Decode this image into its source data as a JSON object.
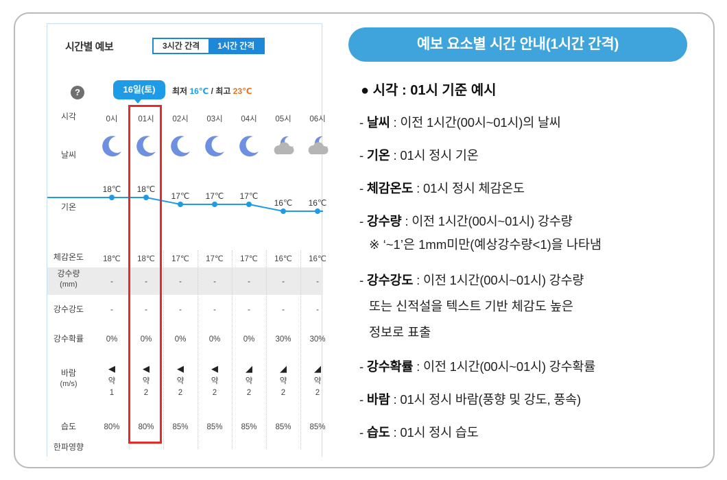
{
  "widget": {
    "title": "시간별 예보",
    "tabs": [
      "3시간 간격",
      "1시간 간격"
    ],
    "help": "?",
    "date_badge": "16일(토)",
    "min_label": "최저",
    "min_value": "16℃",
    "separator": "/",
    "max_label": "최고",
    "max_value": "23℃",
    "rows": {
      "time": "시각",
      "weather": "날씨",
      "temp": "기온",
      "feels": "체감온도",
      "rain_amount": "강수량",
      "rain_amount_unit": "(mm)",
      "rain_intensity": "강수강도",
      "rain_prob": "강수확률",
      "wind": "바람",
      "wind_unit": "(m/s)",
      "humidity": "습도",
      "cold": "한파영향"
    },
    "columns": [
      {
        "time": "0시",
        "weather": "moon-icon",
        "temp": "18℃",
        "temp_val": 18,
        "feels": "18℃",
        "rain_amount": "-",
        "rain_intensity": "-",
        "rain_prob": "0%",
        "wind_dir": "◀",
        "wind_level": "약",
        "wind_speed": "1",
        "humidity": "80%"
      },
      {
        "time": "01시",
        "weather": "moon-icon",
        "temp": "18℃",
        "temp_val": 18,
        "feels": "18℃",
        "rain_amount": "-",
        "rain_intensity": "-",
        "rain_prob": "0%",
        "wind_dir": "◀",
        "wind_level": "약",
        "wind_speed": "2",
        "humidity": "80%"
      },
      {
        "time": "02시",
        "weather": "moon-icon",
        "temp": "17℃",
        "temp_val": 17,
        "feels": "17℃",
        "rain_amount": "-",
        "rain_intensity": "-",
        "rain_prob": "0%",
        "wind_dir": "◀",
        "wind_level": "약",
        "wind_speed": "2",
        "humidity": "85%"
      },
      {
        "time": "03시",
        "weather": "moon-icon",
        "temp": "17℃",
        "temp_val": 17,
        "feels": "17℃",
        "rain_amount": "-",
        "rain_intensity": "-",
        "rain_prob": "0%",
        "wind_dir": "◀",
        "wind_level": "약",
        "wind_speed": "2",
        "humidity": "85%"
      },
      {
        "time": "04시",
        "weather": "moon-icon",
        "temp": "17℃",
        "temp_val": 17,
        "feels": "17℃",
        "rain_amount": "-",
        "rain_intensity": "-",
        "rain_prob": "0%",
        "wind_dir": "◢",
        "wind_level": "약",
        "wind_speed": "2",
        "humidity": "85%"
      },
      {
        "time": "05시",
        "weather": "cloud-moon-icon",
        "temp": "16℃",
        "temp_val": 16,
        "feels": "16℃",
        "rain_amount": "-",
        "rain_intensity": "-",
        "rain_prob": "30%",
        "wind_dir": "◢",
        "wind_level": "약",
        "wind_speed": "2",
        "humidity": "85%"
      },
      {
        "time": "06시",
        "weather": "cloud-moon-icon",
        "temp": "16℃",
        "temp_val": 16,
        "feels": "16℃",
        "rain_amount": "-",
        "rain_intensity": "-",
        "rain_prob": "30%",
        "wind_dir": "◢",
        "wind_level": "약",
        "wind_speed": "2",
        "humidity": "85%"
      }
    ]
  },
  "guide": {
    "title": "예보 요소별 시간 안내(1시간 간격)",
    "heading": "● 시각 : 01시 기준 예시",
    "items": [
      {
        "key": "날씨",
        "text": " : 이전 1시간(00시~01시)의 날씨"
      },
      {
        "key": "기온",
        "text": " : 01시 정시 기온"
      },
      {
        "key": "체감온도",
        "text": " : 01시 정시 체감온도"
      },
      {
        "key": "강수량",
        "text": " : 이전 1시간(00시~01시) 강수량"
      },
      {
        "key": "강수강도",
        "text": " : 이전 1시간(00시~01시) 강수량"
      },
      {
        "key": "강수확률",
        "text": " : 이전 1시간(00시~01시) 강수확률"
      },
      {
        "key": "바람",
        "text": " : 01시 정시 바람(풍향 및 강도, 풍속)"
      },
      {
        "key": "습도",
        "text": " : 01시 정시 습도"
      }
    ],
    "rain_note": "※ ‘~1’은 1mm미만(예상강수량<1)을 나타냄",
    "intensity_line2": "또는 신적설을 텍스트 기반 체감도 높은",
    "intensity_line3": "정보로 표출"
  },
  "colors": {
    "accent": "#1e88d8",
    "pill": "#3fa3dc",
    "highlight": "#e32b2b",
    "min_temp": "#1e9be6",
    "max_temp": "#e8731f",
    "moon": "#6f8fe0"
  }
}
